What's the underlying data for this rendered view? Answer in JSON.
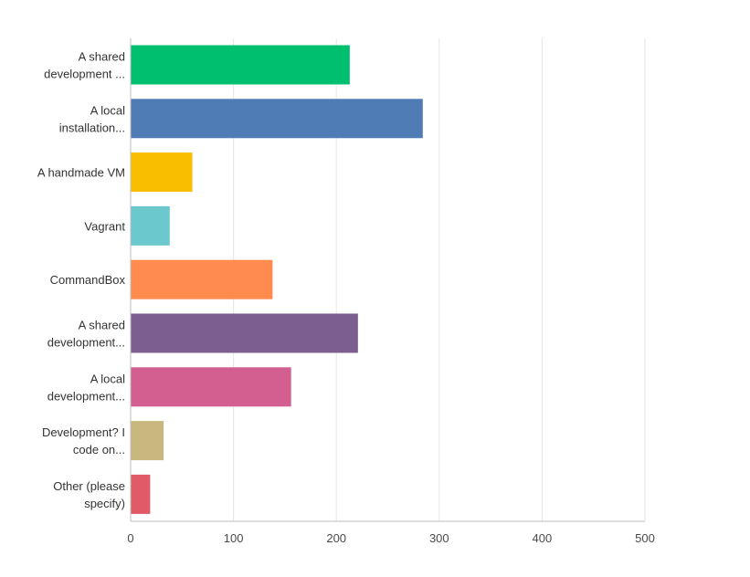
{
  "chart_data": {
    "type": "bar",
    "orientation": "horizontal",
    "title": "",
    "xlabel": "",
    "ylabel": "",
    "xlim": [
      0,
      500
    ],
    "grid": true,
    "legend": "none",
    "ticks": [
      "0",
      "100",
      "200",
      "300",
      "400",
      "500"
    ],
    "tick_values": [
      0,
      100,
      200,
      300,
      400,
      500
    ],
    "categories": [
      [
        "A shared",
        "development ..."
      ],
      [
        "A local",
        "installation..."
      ],
      [
        "A handmade VM"
      ],
      [
        "Vagrant"
      ],
      [
        "CommandBox"
      ],
      [
        "A shared",
        "development..."
      ],
      [
        "A local",
        "development..."
      ],
      [
        "Development? I",
        "code on..."
      ],
      [
        "Other (please",
        "specify)"
      ]
    ],
    "values": [
      213,
      284,
      60,
      38,
      138,
      221,
      156,
      32,
      19
    ],
    "colors": [
      "#00bf6f",
      "#507cb6",
      "#f9be00",
      "#6bc8cd",
      "#ff8b4f",
      "#7d5e90",
      "#d25f90",
      "#c9b87d",
      "#e05a68"
    ]
  }
}
